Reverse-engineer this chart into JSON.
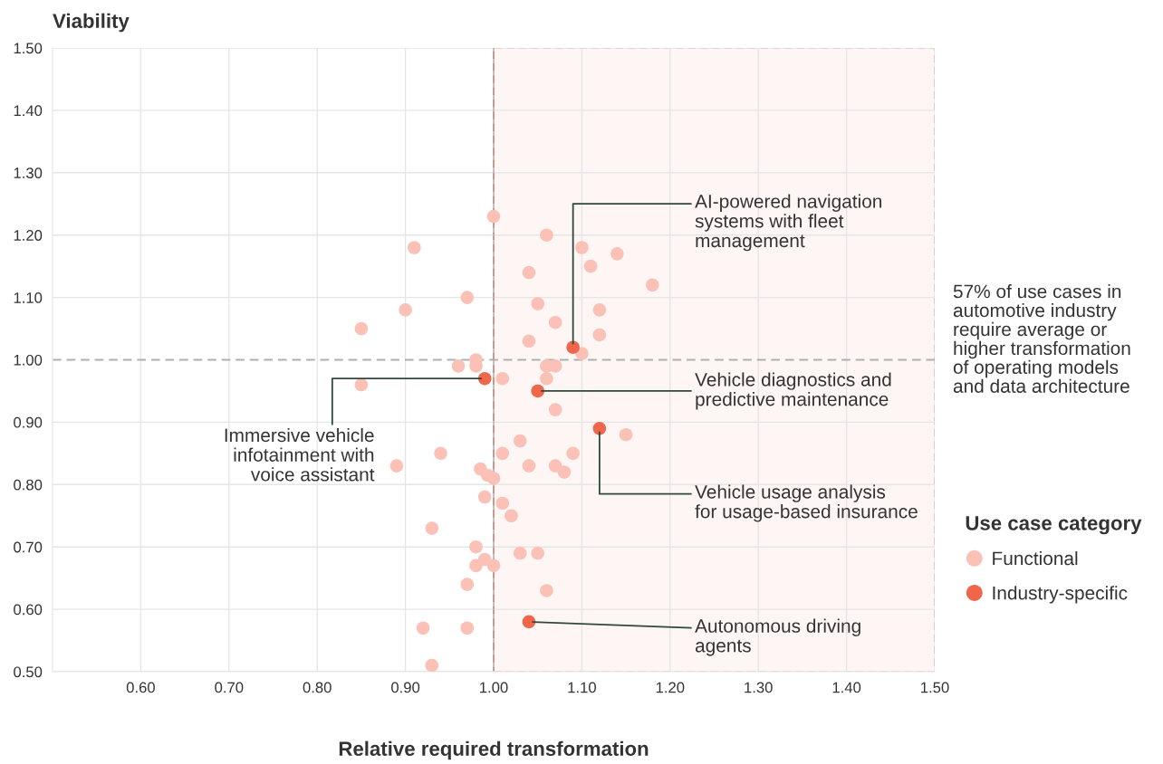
{
  "chart_data": {
    "type": "scatter",
    "ylabel": "Viability",
    "xlabel": "Relative required transformation",
    "legend_title": "Use case category",
    "xlim": [
      0.5,
      1.5
    ],
    "ylim": [
      0.5,
      1.5
    ],
    "xticks": [
      {
        "value": 0.6,
        "label": "0.60"
      },
      {
        "value": 0.7,
        "label": "0.70"
      },
      {
        "value": 0.8,
        "label": "0.80"
      },
      {
        "value": 0.9,
        "label": "0.90"
      },
      {
        "value": 1.0,
        "label": "1.00"
      },
      {
        "value": 1.1,
        "label": "1.10"
      },
      {
        "value": 1.2,
        "label": "1.20"
      },
      {
        "value": 1.3,
        "label": "1.30"
      },
      {
        "value": 1.4,
        "label": "1.40"
      },
      {
        "value": 1.5,
        "label": "1.50"
      }
    ],
    "yticks": [
      {
        "value": 0.5,
        "label": "0.50"
      },
      {
        "value": 0.6,
        "label": "0.60"
      },
      {
        "value": 0.7,
        "label": "0.70"
      },
      {
        "value": 0.8,
        "label": "0.80"
      },
      {
        "value": 0.9,
        "label": "0.90"
      },
      {
        "value": 1.0,
        "label": "1.00"
      },
      {
        "value": 1.1,
        "label": "1.10"
      },
      {
        "value": 1.2,
        "label": "1.20"
      },
      {
        "value": 1.3,
        "label": "1.30"
      },
      {
        "value": 1.4,
        "label": "1.40"
      },
      {
        "value": 1.5,
        "label": "1.50"
      }
    ],
    "grid": true,
    "legend": "right",
    "marker": "circle",
    "bands": [
      {
        "axis": "x",
        "from": 1.0,
        "to": 1.5,
        "color": "#fdf6f4"
      }
    ],
    "ref_lines": [
      {
        "axis": "y",
        "value": 1.0,
        "color": "#b0b0b0",
        "line_style": "dashed"
      },
      {
        "axis": "x",
        "value": 1.0,
        "color": "#a8a8a8",
        "line_style": "solid"
      }
    ],
    "series": [
      {
        "name": "Functional",
        "color": "#fbc0b6",
        "x": [
          1.0,
          1.06,
          0.91,
          1.1,
          1.14,
          1.11,
          1.04,
          1.18,
          0.97,
          0.9,
          1.05,
          1.12,
          0.85,
          1.07,
          1.04,
          1.12,
          1.1,
          0.98,
          0.96,
          0.98,
          1.06,
          1.07,
          0.85,
          1.01,
          1.06,
          1.07,
          0.94,
          0.89,
          1.03,
          1.01,
          1.04,
          1.07,
          1.09,
          1.08,
          0.985,
          0.993,
          1.0,
          0.99,
          1.01,
          1.02,
          0.93,
          0.98,
          1.03,
          1.05,
          0.98,
          0.99,
          1.0,
          0.97,
          1.06,
          0.92,
          0.97,
          0.93,
          1.15
        ],
        "values": [
          1.23,
          1.2,
          1.18,
          1.18,
          1.17,
          1.15,
          1.14,
          1.12,
          1.1,
          1.08,
          1.09,
          1.08,
          1.05,
          1.06,
          1.03,
          1.04,
          1.01,
          1.0,
          0.99,
          0.99,
          0.99,
          0.99,
          0.96,
          0.97,
          0.97,
          0.92,
          0.85,
          0.83,
          0.87,
          0.85,
          0.83,
          0.83,
          0.85,
          0.82,
          0.825,
          0.815,
          0.81,
          0.78,
          0.77,
          0.75,
          0.73,
          0.7,
          0.69,
          0.69,
          0.67,
          0.68,
          0.67,
          0.64,
          0.63,
          0.57,
          0.57,
          0.51,
          0.88
        ]
      },
      {
        "name": "Industry-specific",
        "color": "#f0664a",
        "x": [
          1.09,
          0.99,
          1.05,
          1.12,
          1.04
        ],
        "values": [
          1.02,
          0.97,
          0.95,
          0.89,
          0.58
        ]
      }
    ],
    "annotations": [
      {
        "text": "AI-powered navigation\nsystems with fleet\nmanagement",
        "x": 1.09,
        "y": 1.02
      },
      {
        "text": "Vehicle diagnostics and\npredictive maintenance",
        "x": 1.05,
        "y": 0.95
      },
      {
        "text": "Immersive vehicle\ninfotainment with\nvoice assistant",
        "x": 0.99,
        "y": 0.97
      },
      {
        "text": "Vehicle usage analysis\nfor usage-based insurance",
        "x": 1.12,
        "y": 0.89
      },
      {
        "text": "Autonomous driving\nagents",
        "x": 1.04,
        "y": 0.58
      },
      "57% of use cases in\nautomotive industry\nrequire average or\nhigher transformation\nof operating models\nand data architecture"
    ]
  }
}
